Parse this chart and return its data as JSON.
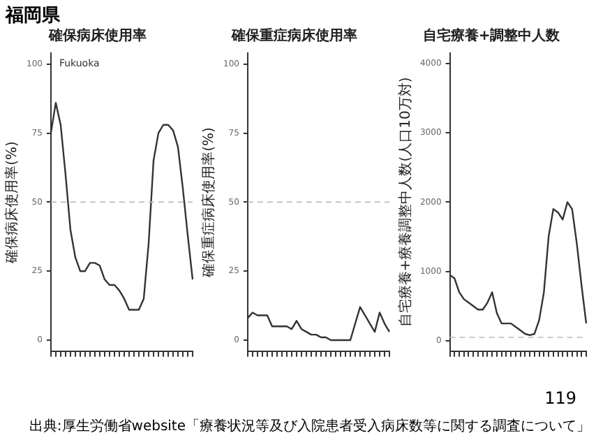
{
  "chart_data": [
    {
      "type": "line",
      "title": "確保病床使用率",
      "ylabel": "確保病床使用率(%)",
      "annotations": [
        "福岡県",
        "Fukuoka"
      ],
      "categories": [
        null,
        null,
        null,
        null,
        null,
        null,
        null,
        null,
        null,
        null,
        null,
        null,
        null,
        null,
        null,
        null,
        null,
        null,
        null,
        null,
        null,
        null,
        null,
        null,
        null,
        null,
        null,
        null,
        null,
        null
      ],
      "series": [
        {
          "color": "#333333",
          "values": [
            75,
            86,
            78,
            60,
            40,
            30,
            25,
            25,
            28,
            28,
            27,
            22,
            20,
            20,
            18,
            15,
            11,
            11,
            11,
            15,
            35,
            65,
            75,
            78,
            78,
            76,
            70,
            55,
            38,
            22
          ]
        }
      ],
      "ylim": [
        -4,
        104
      ],
      "yticks": [
        0,
        25,
        50,
        75,
        100
      ],
      "grid": false,
      "legend": false,
      "tick_labels": "y",
      "marker": "none",
      "line_style": "solid",
      "ref_lines": [
        {
          "axis": "y",
          "value": 50,
          "color": "#bbbbbb",
          "line_style": "dashed"
        }
      ]
    },
    {
      "type": "line",
      "title": "確保重症病床使用率",
      "ylabel": "確保重症病床使用率(%)",
      "categories": [
        null,
        null,
        null,
        null,
        null,
        null,
        null,
        null,
        null,
        null,
        null,
        null,
        null,
        null,
        null,
        null,
        null,
        null,
        null,
        null,
        null,
        null,
        null,
        null,
        null,
        null,
        null,
        null,
        null,
        null
      ],
      "series": [
        {
          "color": "#333333",
          "values": [
            8,
            10,
            9,
            9,
            9,
            5,
            5,
            5,
            5,
            4,
            7,
            4,
            3,
            2,
            2,
            1,
            1,
            0,
            0,
            0,
            0,
            0,
            6,
            12,
            9,
            6,
            3,
            10,
            6,
            3
          ]
        }
      ],
      "ylim": [
        -4,
        104
      ],
      "yticks": [
        0,
        25,
        50,
        75,
        100
      ],
      "grid": false,
      "legend": false,
      "tick_labels": "y",
      "marker": "none",
      "line_style": "solid",
      "ref_lines": [
        {
          "axis": "y",
          "value": 50,
          "color": "#bbbbbb",
          "line_style": "dashed"
        }
      ]
    },
    {
      "type": "line",
      "title": "自宅療養+調整中人数",
      "ylabel": "自宅療養+療養調整中人数(人口10万対)",
      "annotations": [
        "119",
        "出典:厚生労働省website「療養状況等及び入院患者受入病床数等に関する調査について」"
      ],
      "categories": [
        null,
        null,
        null,
        null,
        null,
        null,
        null,
        null,
        null,
        null,
        null,
        null,
        null,
        null,
        null,
        null,
        null,
        null,
        null,
        null,
        null,
        null,
        null,
        null,
        null,
        null,
        null,
        null,
        null,
        null
      ],
      "series": [
        {
          "color": "#333333",
          "values": [
            950,
            900,
            700,
            600,
            550,
            500,
            450,
            450,
            550,
            700,
            400,
            250,
            250,
            250,
            200,
            150,
            100,
            80,
            100,
            300,
            700,
            1500,
            1900,
            1850,
            1750,
            2000,
            1900,
            1400,
            800,
            250
          ]
        }
      ],
      "ylim": [
        -150,
        4150
      ],
      "yticks": [
        0,
        1000,
        2000,
        3000,
        4000
      ],
      "grid": false,
      "legend": false,
      "tick_labels": "y",
      "marker": "none",
      "line_style": "solid",
      "ref_lines": [
        {
          "axis": "y",
          "value": 50,
          "color": "#bbbbbb",
          "line_style": "dashed"
        }
      ]
    }
  ]
}
